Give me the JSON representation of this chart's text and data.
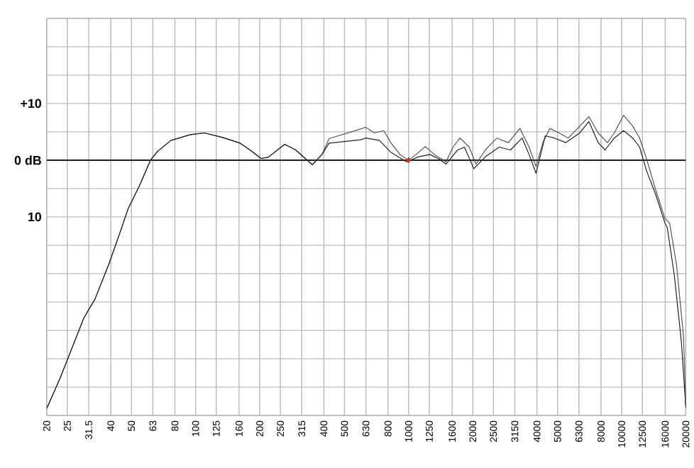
{
  "chart_data": {
    "type": "line",
    "log": "x",
    "grid": true,
    "xlim": [
      20,
      20000
    ],
    "xticks": [
      20,
      25,
      31.5,
      40,
      50,
      63,
      80,
      100,
      125,
      160,
      200,
      250,
      315,
      400,
      500,
      630,
      800,
      1000,
      1250,
      1600,
      2000,
      2500,
      3150,
      4000,
      5000,
      6300,
      8000,
      10000,
      12500,
      16000,
      20000
    ],
    "ylim": [
      -45,
      25
    ],
    "yticks": [
      {
        "value": 25,
        "label": null
      },
      {
        "value": 20,
        "label": null
      },
      {
        "value": 15,
        "label": null
      },
      {
        "value": 10,
        "label": "+10"
      },
      {
        "value": 5,
        "label": null
      },
      {
        "value": 0,
        "label": "0 dB"
      },
      {
        "value": -5,
        "label": null
      },
      {
        "value": -10,
        "label": "10"
      },
      {
        "value": -15,
        "label": null
      },
      {
        "value": -20,
        "label": null
      },
      {
        "value": -25,
        "label": null
      },
      {
        "value": -30,
        "label": null
      },
      {
        "value": -35,
        "label": null
      },
      {
        "value": -40,
        "label": null
      },
      {
        "value": -45,
        "label": null
      }
    ],
    "ref_lines": [
      {
        "axis": "y",
        "value": 0,
        "color": "#000000"
      }
    ],
    "series": [
      {
        "color": "#555555",
        "x": [
          20,
          23.2,
          29.9,
          33.7,
          39.2,
          44.9,
          48.3,
          54.5,
          61.4,
          66.1,
          76.7,
          94.6,
          110,
          134,
          162,
          180,
          203,
          219,
          262,
          295,
          353,
          392,
          423,
          596,
          627,
          692,
          764,
          824,
          910,
          1000,
          1083,
          1197,
          1322,
          1498,
          1615,
          1742,
          1925,
          2072,
          2290,
          2594,
          2938,
          3329,
          3676,
          3963,
          4268,
          4603,
          5082,
          5610,
          6209,
          7015,
          7755,
          8570,
          9226,
          10200,
          11270,
          12140,
          13090,
          14460,
          15960,
          16790,
          18110,
          19510,
          20000
        ],
        "values": [
          -43.8,
          -38.3,
          -27.8,
          -24.5,
          -18.3,
          -12,
          -8.5,
          -4.5,
          0,
          1.5,
          3.5,
          4.5,
          4.8,
          4,
          3,
          1.8,
          0.3,
          0.5,
          2.8,
          1.8,
          -0.8,
          1,
          3.8,
          5.5,
          5.8,
          4.8,
          5.2,
          3.1,
          1,
          0,
          1,
          2.4,
          1,
          -0.3,
          2.3,
          3.9,
          2.3,
          -0.7,
          1.8,
          3.9,
          3.1,
          5.6,
          2.3,
          -1.1,
          3.1,
          5.6,
          4.8,
          3.9,
          5.6,
          7.7,
          4.8,
          3.1,
          4.8,
          7.9,
          6,
          3.9,
          0.2,
          -5.3,
          -10.3,
          -11.1,
          -18.6,
          -31.1,
          -43.6
        ]
      },
      {
        "color": "#222222",
        "x": [
          20,
          23.2,
          29.9,
          33.7,
          39.2,
          44.9,
          48.3,
          54.5,
          61.4,
          66.1,
          76.7,
          94.6,
          110,
          134,
          162,
          180,
          203,
          219,
          262,
          295,
          353,
          392,
          423,
          596,
          627,
          728,
          824,
          980,
          1112,
          1259,
          1391,
          1498,
          1698,
          1828,
          2023,
          2290,
          2661,
          3006,
          3409,
          3676,
          3963,
          4376,
          4833,
          5472,
          6353,
          7015,
          7755,
          8356,
          9226,
          10200,
          11270,
          12140,
          13090,
          14460,
          15960,
          16370,
          17660,
          19050,
          20000
        ],
        "values": [
          -43.8,
          -38.3,
          -27.8,
          -24.5,
          -18.3,
          -12,
          -8.5,
          -4.5,
          0,
          1.5,
          3.5,
          4.5,
          4.8,
          4,
          3,
          1.8,
          0.3,
          0.5,
          2.8,
          1.8,
          -0.8,
          1,
          3,
          3.6,
          3.9,
          3.5,
          1.4,
          -0.3,
          0.6,
          1,
          0.2,
          -0.7,
          1.8,
          2.3,
          -1.5,
          0.6,
          2.3,
          1.8,
          3.9,
          1,
          -2.3,
          4.3,
          3.9,
          3.1,
          4.8,
          6.8,
          3.1,
          1.8,
          3.9,
          5.2,
          3.9,
          2.3,
          -1.9,
          -6.1,
          -11.1,
          -11.9,
          -20.3,
          -31.9,
          -43.6
        ]
      },
      {
        "type": "scatter",
        "color": "#dd2222",
        "marker": "diamond",
        "x": [
          1000
        ],
        "values": [
          0
        ]
      }
    ]
  }
}
